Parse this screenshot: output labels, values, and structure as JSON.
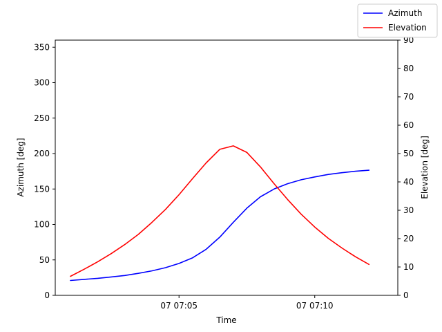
{
  "chart_data": {
    "type": "line",
    "xlabel": "Time",
    "ylabel_left": "Azimuth [deg]",
    "ylabel_right": "Elevation [deg]",
    "x_ticks": [
      {
        "minute": 5,
        "label": "07 07:05"
      },
      {
        "minute": 10,
        "label": "07 07:10"
      }
    ],
    "x_range": [
      1,
      12.5
    ],
    "ylim_left": [
      0,
      360
    ],
    "ylim_right": [
      0,
      90
    ],
    "y_ticks_left": [
      0,
      50,
      100,
      150,
      200,
      250,
      300,
      350
    ],
    "y_ticks_right": [
      0,
      10,
      20,
      30,
      40,
      50,
      60,
      70,
      80,
      90
    ],
    "legend_position": "top-right",
    "grid": false,
    "x_minutes": [
      1.0,
      1.5,
      2.0,
      2.5,
      3.0,
      3.5,
      4.0,
      4.5,
      5.0,
      5.5,
      6.0,
      6.5,
      7.0,
      7.5,
      8.0,
      8.5,
      9.0,
      9.5,
      10.0,
      10.5,
      11.0,
      11.5,
      12.0
    ],
    "series": [
      {
        "name": "Azimuth",
        "axis": "left",
        "color": "#0000ff",
        "values": [
          21,
          22.5,
          24,
          26,
          28,
          31,
          34.5,
          39,
          45,
          53,
          65,
          82,
          103,
          123,
          139,
          150,
          157.5,
          163,
          167,
          170.5,
          173,
          175,
          176.5
        ]
      },
      {
        "name": "Elevation",
        "axis": "right",
        "color": "#ff0000",
        "values": [
          6.7,
          9.2,
          11.8,
          14.7,
          17.9,
          21.5,
          25.7,
          30.3,
          35.5,
          41.2,
          46.7,
          51.5,
          52.7,
          50.4,
          45.3,
          39.4,
          33.8,
          28.6,
          24.1,
          20.1,
          16.7,
          13.6,
          10.9
        ]
      }
    ]
  }
}
